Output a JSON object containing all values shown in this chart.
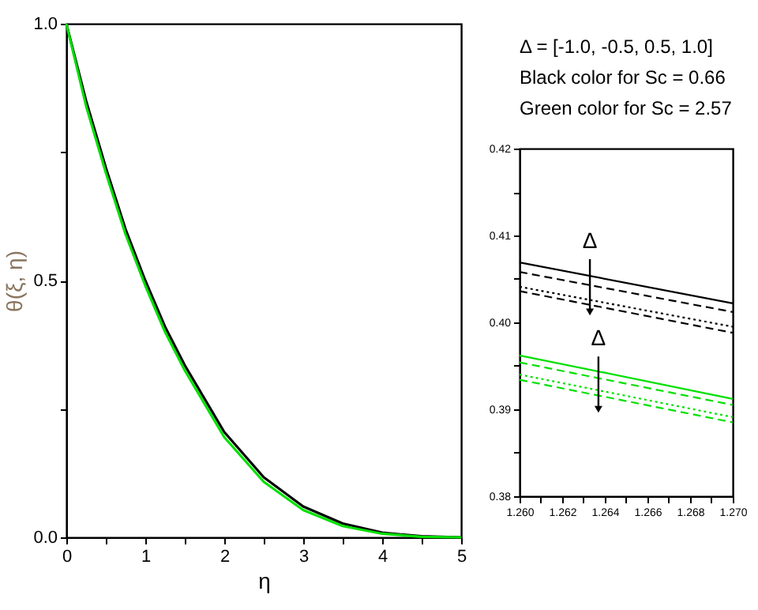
{
  "chart_data": [
    {
      "type": "line",
      "xlabel": "η",
      "ylabel": "θ(ξ, η)",
      "annotations": [
        "Δ = [-1.0, -0.5, 0.5, 1.0]",
        "Black color for Sc = 0.66",
        "Green color for Sc = 2.57"
      ],
      "x": [
        0,
        0.25,
        0.5,
        0.75,
        1,
        1.25,
        1.5,
        2,
        2.5,
        3,
        3.5,
        4,
        4.5,
        5
      ],
      "series": [
        {
          "color": "#000000",
          "values": [
            1,
            0.85,
            0.72,
            0.6,
            0.5,
            0.41,
            0.335,
            0.205,
            0.117,
            0.06,
            0.027,
            0.009,
            0.002,
            0
          ]
        },
        {
          "color": "#00e000",
          "values": [
            1,
            0.84,
            0.71,
            0.59,
            0.49,
            0.4,
            0.325,
            0.195,
            0.108,
            0.053,
            0.022,
            0.007,
            0.001,
            0
          ]
        }
      ],
      "xlim": [
        0,
        5
      ],
      "xticks": [
        0,
        {
          "value": 0.5,
          "label": null
        },
        1,
        {
          "value": 1.5,
          "label": null
        },
        2,
        {
          "value": 2.5,
          "label": null
        },
        3,
        {
          "value": 3.5,
          "label": null
        },
        4,
        {
          "value": 4.5,
          "label": null
        },
        5
      ],
      "ylim": [
        0,
        1
      ],
      "yticks": [
        {
          "value": 0,
          "label": "0.0"
        },
        {
          "value": 0.25,
          "label": null
        },
        {
          "value": 0.5,
          "label": "0.5"
        },
        {
          "value": 0.75,
          "label": null
        },
        {
          "value": 1,
          "label": "1.0"
        }
      ],
      "grid": false,
      "marker": "none",
      "line_style": "solid"
    },
    {
      "type": "line",
      "x": [
        1.26,
        1.27
      ],
      "series": [
        {
          "color": "#000000",
          "line_style": "solid",
          "values": [
            0.4069,
            0.4022
          ]
        },
        {
          "color": "#000000",
          "line_style": "dashed",
          "values": [
            0.4058,
            0.4012
          ]
        },
        {
          "color": "#000000",
          "line_style": "dotted",
          "values": [
            0.4041,
            0.3995
          ]
        },
        {
          "color": "#000000",
          "line_style": "dashed",
          "values": [
            0.4036,
            0.3988
          ]
        },
        {
          "color": "#00e000",
          "line_style": "solid",
          "values": [
            0.3962,
            0.3912
          ]
        },
        {
          "color": "#00e000",
          "line_style": "dashed",
          "values": [
            0.3954,
            0.3905
          ]
        },
        {
          "color": "#00e000",
          "line_style": "dotted",
          "values": [
            0.394,
            0.3891
          ]
        },
        {
          "color": "#00e000",
          "line_style": "dashed",
          "values": [
            0.3934,
            0.3885
          ]
        }
      ],
      "annotations": [
        "Δ",
        "Δ"
      ],
      "xlim": [
        1.26,
        1.27
      ],
      "xticks": [
        {
          "value": 1.26,
          "label": "1.260"
        },
        {
          "value": 1.261,
          "label": null
        },
        {
          "value": 1.262,
          "label": "1.262"
        },
        {
          "value": 1.263,
          "label": null
        },
        {
          "value": 1.264,
          "label": "1.264"
        },
        {
          "value": 1.265,
          "label": null
        },
        {
          "value": 1.266,
          "label": "1.266"
        },
        {
          "value": 1.267,
          "label": null
        },
        {
          "value": 1.268,
          "label": "1.268"
        },
        {
          "value": 1.269,
          "label": null
        },
        {
          "value": 1.27,
          "label": "1.270"
        }
      ],
      "ylim": [
        0.38,
        0.42
      ],
      "yticks": [
        {
          "value": 0.38,
          "label": "0.38"
        },
        {
          "value": 0.385,
          "label": null
        },
        {
          "value": 0.39,
          "label": "0.39"
        },
        {
          "value": 0.395,
          "label": null
        },
        {
          "value": 0.4,
          "label": "0.40"
        },
        {
          "value": 0.405,
          "label": null
        },
        {
          "value": 0.41,
          "label": "0.41"
        },
        {
          "value": 0.415,
          "label": null
        },
        {
          "value": 0.42,
          "label": "0.42"
        }
      ],
      "grid": false,
      "marker": "none"
    }
  ]
}
